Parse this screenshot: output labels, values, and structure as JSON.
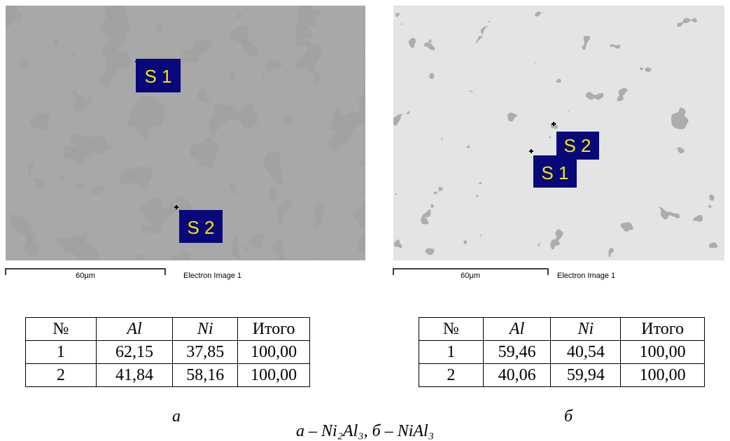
{
  "panels": [
    {
      "image": {
        "labels": [
          "S 1",
          "S 2"
        ],
        "scale": "60µm",
        "caption": "Electron Image 1"
      },
      "table": {
        "header": [
          "№",
          "Al",
          "Ni",
          "Итого"
        ],
        "rows": [
          [
            "1",
            "62,15",
            "37,85",
            "100,00"
          ],
          [
            "2",
            "41,84",
            "58,16",
            "100,00"
          ]
        ]
      },
      "letter": "а"
    },
    {
      "image": {
        "labels": [
          "S 1",
          "S 2"
        ],
        "scale": "60µm",
        "caption": "Electron Image 1"
      },
      "table": {
        "header": [
          "№",
          "Al",
          "Ni",
          "Итого"
        ],
        "rows": [
          [
            "1",
            "59,46",
            "40,54",
            "100,00"
          ],
          [
            "2",
            "40,06",
            "59,94",
            "100,00"
          ]
        ]
      },
      "letter": "б"
    }
  ],
  "caption": "а – Ni₂Al₃, б – NiAl₃"
}
